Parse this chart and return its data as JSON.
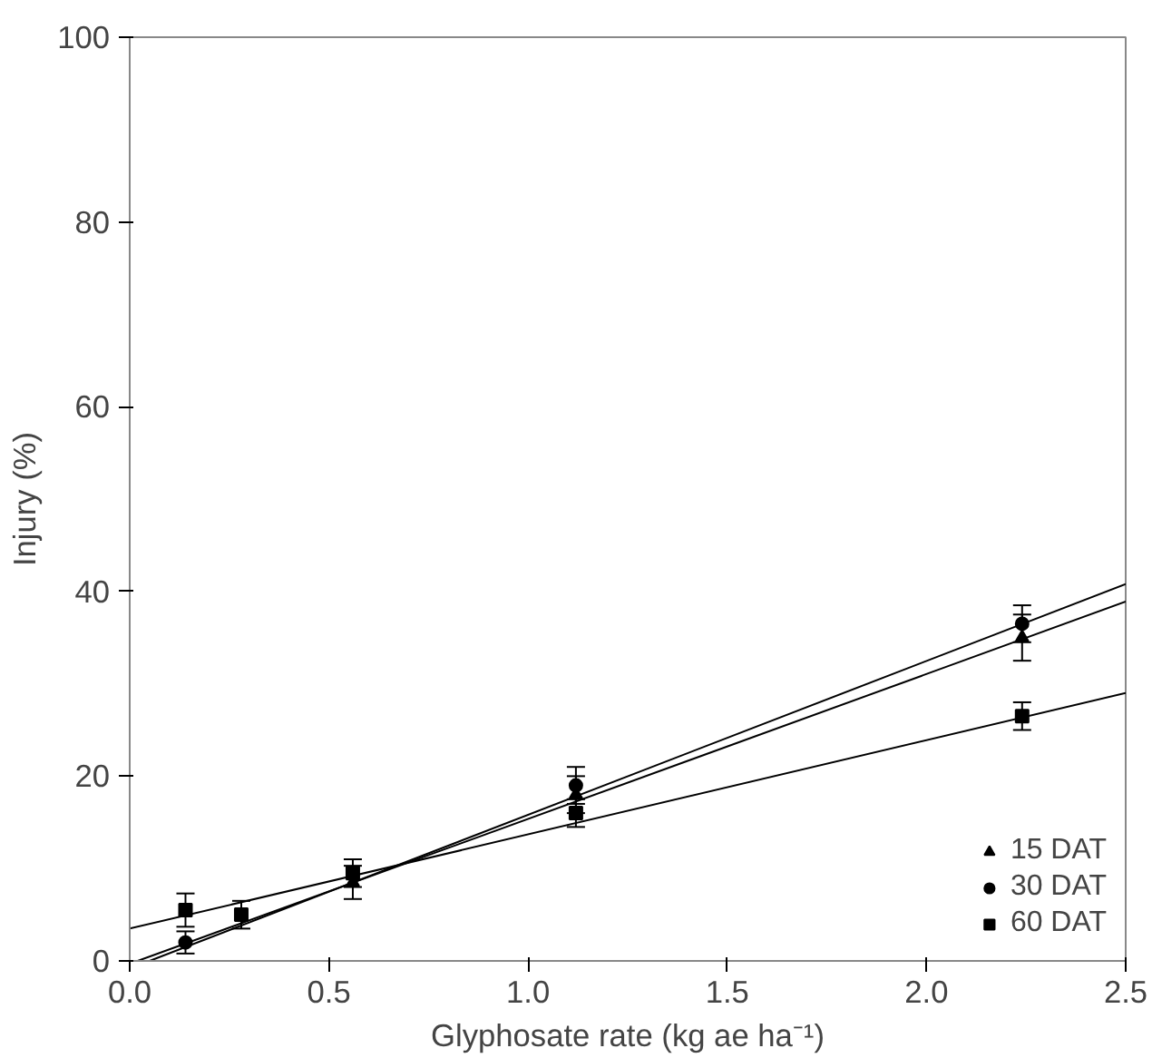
{
  "chart_data": {
    "type": "scatter",
    "xlabel": "Glyphosate rate (kg ae ha⁻¹)",
    "ylabel": "Injury (%)",
    "x": [
      0.14,
      0.28,
      0.56,
      1.12,
      2.24
    ],
    "series": [
      {
        "name": "15 DAT",
        "color": "#000000",
        "marker": "triangle",
        "values": [
          null,
          null,
          8.5,
          18,
          35
        ],
        "errors": [
          null,
          null,
          1.8,
          2,
          2.5
        ]
      },
      {
        "name": "30 DAT",
        "color": "#000000",
        "marker": "circle",
        "values": [
          2,
          null,
          null,
          19,
          36.5
        ],
        "errors": [
          1.2,
          null,
          null,
          2,
          2
        ]
      },
      {
        "name": "60 DAT",
        "color": "#000000",
        "marker": "square",
        "values": [
          5.5,
          5,
          9.5,
          16,
          26.5
        ],
        "errors": [
          1.8,
          1.5,
          1.5,
          1.5,
          1.5
        ]
      },
      {
        "type": "line",
        "color": "#000000",
        "x": [
          0.02,
          2.5
        ],
        "values": [
          0,
          38.9
        ]
      },
      {
        "type": "line",
        "color": "#000000",
        "x": [
          0.05,
          2.5
        ],
        "values": [
          0,
          40.8
        ]
      },
      {
        "type": "line",
        "color": "#000000",
        "x": [
          0,
          2.5
        ],
        "values": [
          3.5,
          29
        ]
      }
    ],
    "xlim": [
      0,
      2.5
    ],
    "ylim": [
      0,
      100
    ],
    "xticks": [
      {
        "value": 0,
        "label": "0.0"
      },
      {
        "value": 0.5,
        "label": "0.5"
      },
      {
        "value": 1,
        "label": "1.0"
      },
      {
        "value": 1.5,
        "label": "1.5"
      },
      {
        "value": 2,
        "label": "2.0"
      },
      {
        "value": 2.5,
        "label": "2.5"
      }
    ],
    "yticks": [
      0,
      20,
      40,
      60,
      80,
      100
    ],
    "grid": false,
    "legend": "bottom right"
  }
}
